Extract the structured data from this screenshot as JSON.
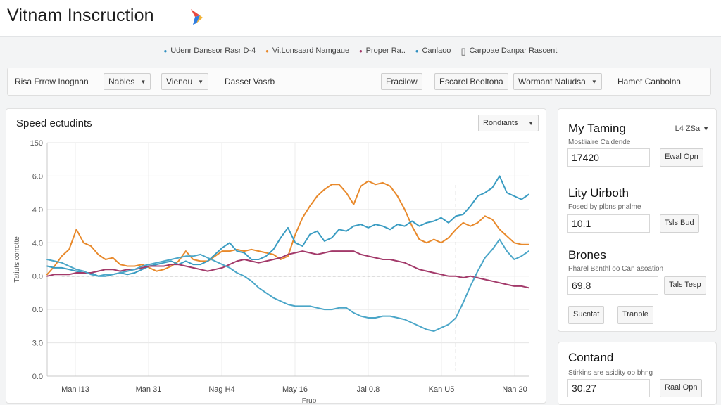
{
  "header": {
    "title": "Vitnam  Inscruction",
    "logo_colors": [
      "#e8483f",
      "#f2b233",
      "#2f7de0"
    ]
  },
  "legend": [
    {
      "label": "Udenr Danssor Rasr D-4",
      "color": "#2f8fc0",
      "marker": "•"
    },
    {
      "label": "Vi.Lonsaard Namgaue",
      "color": "#e8892b",
      "marker": "•"
    },
    {
      "label": "Proper Ra..",
      "color": "#a33a6a",
      "marker": "•"
    },
    {
      "label": "Canlaoo",
      "color": "#2f8fc0",
      "marker": "•"
    },
    {
      "label": "Carpoae Danpar Rascent",
      "color": "#555555",
      "marker": "▯"
    }
  ],
  "toolbar": {
    "label_left": "Risa Frrow Inognan",
    "select1": "Nables",
    "select2": "Vienou",
    "label_mid": "Dasset Vasrb",
    "btn1": "Fracilow",
    "btn2": "Escarel Beoltona",
    "select3": "Wormant Naludsa",
    "label_right": "Hamet Canbolna"
  },
  "chart_card": {
    "title": "Speed ectudints",
    "dropdown": "Rondiants"
  },
  "chart_data": {
    "type": "line",
    "title": "Speed ectudints",
    "ylabel": "Tatiuts corrotte",
    "xlabel": "Fruo",
    "y_tick_labels": [
      "150",
      "6.0",
      "4 0",
      "4.0",
      "0.0",
      "0.0",
      "3.0",
      "0.0"
    ],
    "x_tick_labels": [
      "Man I13",
      "Man 31",
      "Nag H4",
      "May 16",
      "Jal 0.8",
      "Kan U5",
      "Nan 20"
    ],
    "ylim": [
      -6,
      8
    ],
    "x": [
      0,
      1,
      2,
      3,
      4,
      5,
      6,
      7,
      8,
      9,
      10,
      11,
      12,
      13,
      14,
      15,
      16,
      17,
      18,
      19,
      20,
      21,
      22,
      23,
      24,
      25,
      26,
      27,
      28,
      29,
      30,
      31,
      32,
      33,
      34,
      35,
      36,
      37,
      38,
      39,
      40,
      41,
      42,
      43,
      44,
      45,
      46,
      47,
      48,
      49,
      50,
      51,
      52,
      53,
      54,
      55,
      56,
      57,
      58,
      59,
      60,
      61,
      62,
      63,
      64,
      65,
      66
    ],
    "series": [
      {
        "name": "Vi.Lonsaard Namgaue",
        "color": "#e8892b",
        "values": [
          0.1,
          0.6,
          1.2,
          1.6,
          2.8,
          2.0,
          1.8,
          1.3,
          1.0,
          1.1,
          0.7,
          0.6,
          0.6,
          0.7,
          0.5,
          0.3,
          0.4,
          0.6,
          0.9,
          1.5,
          1.0,
          0.9,
          0.9,
          1.2,
          1.5,
          1.5,
          1.6,
          1.5,
          1.6,
          1.5,
          1.4,
          1.3,
          1.0,
          1.2,
          2.5,
          3.5,
          4.2,
          4.8,
          5.2,
          5.5,
          5.5,
          5.0,
          4.3,
          5.4,
          5.7,
          5.5,
          5.6,
          5.4,
          4.8,
          4.0,
          3.0,
          2.2,
          2.0,
          2.2,
          2.0,
          2.3,
          2.8,
          3.2,
          3.0,
          3.2,
          3.6,
          3.4,
          2.8,
          2.4,
          2.0,
          1.9,
          1.9
        ]
      },
      {
        "name": "Udenr Danssor Rasr D-4",
        "color": "#3a9cc2",
        "values": [
          0.6,
          0.5,
          0.5,
          0.4,
          0.3,
          0.2,
          0.2,
          0.0,
          0.0,
          0.1,
          0.2,
          0.1,
          0.2,
          0.4,
          0.6,
          0.7,
          0.8,
          0.9,
          0.7,
          0.9,
          0.7,
          0.7,
          0.9,
          1.3,
          1.7,
          2.0,
          1.5,
          1.4,
          1.0,
          1.0,
          1.2,
          1.6,
          2.3,
          2.9,
          2.0,
          1.8,
          2.5,
          2.7,
          2.1,
          2.3,
          2.8,
          2.7,
          3.0,
          3.1,
          2.9,
          3.1,
          3.0,
          2.8,
          3.1,
          3.0,
          3.3,
          3.0,
          3.2,
          3.3,
          3.5,
          3.2,
          3.6,
          3.7,
          4.2,
          4.8,
          5.0,
          5.3,
          6.0,
          5.0,
          4.8,
          4.6,
          4.9
        ]
      },
      {
        "name": "Proper Ra..",
        "color": "#a33a6a",
        "values": [
          0.0,
          0.1,
          0.1,
          0.1,
          0.2,
          0.2,
          0.2,
          0.3,
          0.4,
          0.4,
          0.3,
          0.4,
          0.4,
          0.5,
          0.6,
          0.6,
          0.6,
          0.7,
          0.7,
          0.6,
          0.5,
          0.4,
          0.3,
          0.4,
          0.5,
          0.7,
          0.9,
          1.0,
          0.9,
          0.8,
          0.9,
          1.0,
          1.1,
          1.3,
          1.4,
          1.5,
          1.4,
          1.3,
          1.4,
          1.5,
          1.5,
          1.5,
          1.5,
          1.3,
          1.2,
          1.1,
          1.0,
          1.0,
          0.9,
          0.8,
          0.6,
          0.4,
          0.3,
          0.2,
          0.1,
          0.0,
          0.0,
          -0.1,
          0.0,
          -0.1,
          -0.2,
          -0.3,
          -0.4,
          -0.5,
          -0.6,
          -0.6,
          -0.7
        ]
      },
      {
        "name": "Canlaoo",
        "color": "#4ba6c8",
        "values": [
          1.0,
          0.9,
          0.8,
          0.6,
          0.4,
          0.3,
          0.1,
          0.0,
          0.1,
          0.1,
          0.2,
          0.3,
          0.4,
          0.6,
          0.7,
          0.8,
          0.9,
          1.0,
          1.1,
          1.2,
          1.2,
          1.3,
          1.1,
          0.9,
          0.7,
          0.5,
          0.2,
          0.0,
          -0.3,
          -0.7,
          -1.0,
          -1.3,
          -1.5,
          -1.7,
          -1.8,
          -1.8,
          -1.8,
          -1.9,
          -2.0,
          -2.0,
          -1.9,
          -1.9,
          -2.2,
          -2.4,
          -2.5,
          -2.5,
          -2.4,
          -2.4,
          -2.5,
          -2.6,
          -2.8,
          -3.0,
          -3.2,
          -3.3,
          -3.1,
          -2.9,
          -2.5,
          -1.6,
          -0.6,
          0.3,
          1.1,
          1.6,
          2.2,
          1.5,
          1.0,
          1.2,
          1.5
        ]
      }
    ],
    "baseline": {
      "label": "Carpoae Danpar Rascent",
      "value": 0.0
    },
    "marker_x": 56,
    "grid": true
  },
  "side": {
    "corner_label": "L4 ZSa",
    "cards": [
      {
        "title": "My Taming",
        "sub": "Mostliaire Caldende",
        "value": "17420",
        "button": "Ewal Opn"
      },
      {
        "title": "Lity Uirboth",
        "sub": "Fosed by plbns pnalme",
        "value": "10.1",
        "button": "Tsls Bud"
      },
      {
        "title": "Brones",
        "sub": "Pharel Bsnthl oo Can asoation",
        "value": "69.8",
        "button": "Tals Tesp"
      }
    ],
    "buttons": [
      "Sucntat",
      "Tranple"
    ],
    "contact": {
      "title": "Contand",
      "sub": "Stirkins are asidity oo bhng",
      "value": "30.27",
      "button": "Raal Opn"
    }
  }
}
